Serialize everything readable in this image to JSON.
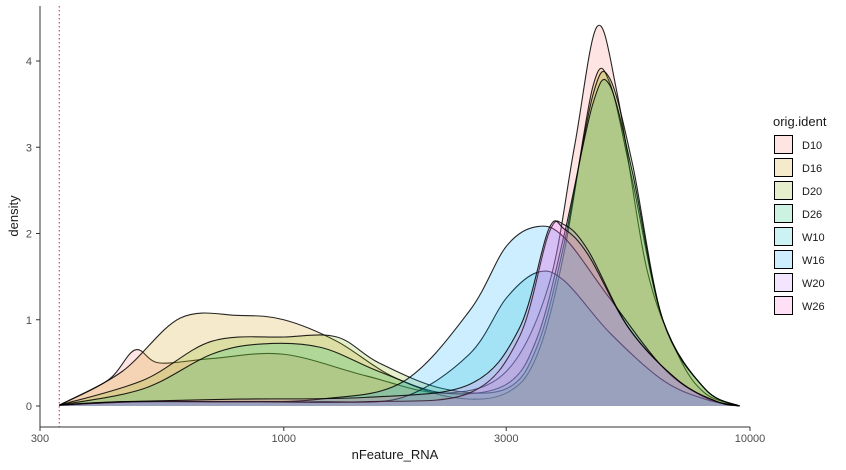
{
  "chart_data": {
    "type": "area",
    "xlabel": "nFeature_RNA",
    "ylabel": "density",
    "x_scale": "log10",
    "xlim": [
      300,
      10000
    ],
    "ylim": [
      0,
      4.4
    ],
    "x_ticks": [
      300,
      1000,
      3000,
      10000
    ],
    "x_tick_labels": [
      "300",
      "1000",
      "3000",
      "10000"
    ],
    "y_ticks": [
      0,
      1,
      2,
      3,
      4
    ],
    "y_tick_labels": [
      "0",
      "1",
      "2",
      "3",
      "4"
    ],
    "threshold_line": {
      "x": 330,
      "style": "dotted",
      "color": "#e0474c"
    },
    "legend": {
      "title": "orig.ident",
      "position": "right"
    },
    "series": [
      {
        "name": "D10",
        "color": "#f8766d",
        "points": [
          [
            330,
            0.01
          ],
          [
            420,
            0.3
          ],
          [
            480,
            0.65
          ],
          [
            540,
            0.5
          ],
          [
            700,
            0.55
          ],
          [
            1000,
            0.6
          ],
          [
            1500,
            0.35
          ],
          [
            2200,
            0.15
          ],
          [
            3000,
            0.4
          ],
          [
            3700,
            1.4
          ],
          [
            4200,
            3.0
          ],
          [
            4700,
            4.4
          ],
          [
            5200,
            3.6
          ],
          [
            6000,
            1.6
          ],
          [
            7000,
            0.6
          ],
          [
            8000,
            0.15
          ],
          [
            9500,
            0.0
          ]
        ]
      },
      {
        "name": "D16",
        "color": "#cd9600",
        "points": [
          [
            330,
            0.01
          ],
          [
            450,
            0.4
          ],
          [
            600,
            1.02
          ],
          [
            800,
            1.05
          ],
          [
            1000,
            1.0
          ],
          [
            1300,
            0.75
          ],
          [
            1700,
            0.35
          ],
          [
            2300,
            0.1
          ],
          [
            3000,
            0.15
          ],
          [
            3500,
            0.6
          ],
          [
            4000,
            1.8
          ],
          [
            4600,
            3.7
          ],
          [
            5000,
            3.75
          ],
          [
            5600,
            2.6
          ],
          [
            6500,
            1.0
          ],
          [
            8000,
            0.2
          ],
          [
            9500,
            0.0
          ]
        ]
      },
      {
        "name": "D20",
        "color": "#7cae00",
        "points": [
          [
            330,
            0.01
          ],
          [
            500,
            0.3
          ],
          [
            700,
            0.75
          ],
          [
            1000,
            0.8
          ],
          [
            1300,
            0.8
          ],
          [
            1600,
            0.5
          ],
          [
            2200,
            0.2
          ],
          [
            3000,
            0.2
          ],
          [
            3500,
            0.7
          ],
          [
            4000,
            1.9
          ],
          [
            4600,
            3.6
          ],
          [
            5000,
            3.8
          ],
          [
            5600,
            2.8
          ],
          [
            6500,
            1.0
          ],
          [
            8000,
            0.2
          ],
          [
            9500,
            0.0
          ]
        ]
      },
      {
        "name": "D26",
        "color": "#00be67",
        "points": [
          [
            330,
            0.01
          ],
          [
            500,
            0.2
          ],
          [
            700,
            0.6
          ],
          [
            900,
            0.72
          ],
          [
            1200,
            0.68
          ],
          [
            1600,
            0.4
          ],
          [
            2200,
            0.15
          ],
          [
            3000,
            0.25
          ],
          [
            3500,
            0.8
          ],
          [
            4000,
            2.0
          ],
          [
            4600,
            3.5
          ],
          [
            5000,
            3.72
          ],
          [
            5600,
            2.7
          ],
          [
            6500,
            1.0
          ],
          [
            8000,
            0.2
          ],
          [
            9500,
            0.0
          ]
        ]
      },
      {
        "name": "W10",
        "color": "#00bfc4",
        "points": [
          [
            330,
            0.01
          ],
          [
            500,
            0.05
          ],
          [
            800,
            0.05
          ],
          [
            1200,
            0.05
          ],
          [
            1800,
            0.1
          ],
          [
            2500,
            0.6
          ],
          [
            3000,
            1.25
          ],
          [
            3500,
            1.55
          ],
          [
            4000,
            1.45
          ],
          [
            5000,
            0.85
          ],
          [
            6500,
            0.3
          ],
          [
            8000,
            0.08
          ],
          [
            9500,
            0.0
          ]
        ]
      },
      {
        "name": "W16",
        "color": "#00a9ff",
        "points": [
          [
            330,
            0.01
          ],
          [
            500,
            0.05
          ],
          [
            800,
            0.05
          ],
          [
            1200,
            0.08
          ],
          [
            1800,
            0.28
          ],
          [
            2500,
            1.1
          ],
          [
            3000,
            1.85
          ],
          [
            3500,
            2.08
          ],
          [
            4000,
            1.95
          ],
          [
            5000,
            1.25
          ],
          [
            6500,
            0.45
          ],
          [
            8000,
            0.1
          ],
          [
            9500,
            0.0
          ]
        ]
      },
      {
        "name": "W20",
        "color": "#c77cff",
        "points": [
          [
            330,
            0.01
          ],
          [
            450,
            0.05
          ],
          [
            800,
            0.05
          ],
          [
            1500,
            0.05
          ],
          [
            2500,
            0.15
          ],
          [
            3200,
            0.8
          ],
          [
            3700,
            2.0
          ],
          [
            4000,
            2.1
          ],
          [
            4500,
            1.8
          ],
          [
            5500,
            0.9
          ],
          [
            7000,
            0.3
          ],
          [
            8500,
            0.05
          ],
          [
            9500,
            0.0
          ]
        ]
      },
      {
        "name": "W26",
        "color": "#ff61cc",
        "points": [
          [
            330,
            0.01
          ],
          [
            450,
            0.05
          ],
          [
            800,
            0.08
          ],
          [
            1500,
            0.1
          ],
          [
            2500,
            0.25
          ],
          [
            3200,
            0.9
          ],
          [
            3700,
            2.05
          ],
          [
            4000,
            2.05
          ],
          [
            4500,
            1.75
          ],
          [
            5500,
            0.9
          ],
          [
            7000,
            0.3
          ],
          [
            8500,
            0.05
          ],
          [
            9500,
            0.0
          ]
        ]
      }
    ]
  }
}
